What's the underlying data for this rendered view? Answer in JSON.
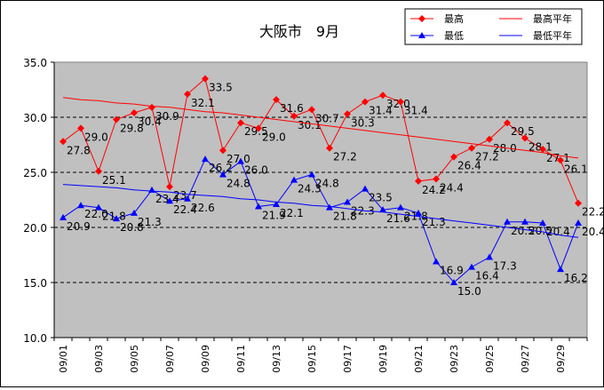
{
  "chart_data": {
    "type": "line",
    "title": "大阪市　9月",
    "xlabel": "",
    "ylabel": "",
    "ylim": [
      10.0,
      35.0
    ],
    "ytick_step": 5.0,
    "grid": "horizontal-dashed",
    "plot_background": "#c0c0c0",
    "legend_position": "top-right",
    "x_ticks": [
      "09/01",
      "09/03",
      "09/05",
      "09/07",
      "09/09",
      "09/11",
      "09/13",
      "09/15",
      "09/17",
      "09/19",
      "09/21",
      "09/23",
      "09/25",
      "09/27",
      "09/29"
    ],
    "days": [
      1,
      2,
      3,
      4,
      5,
      6,
      7,
      8,
      9,
      10,
      11,
      12,
      13,
      14,
      15,
      16,
      17,
      18,
      19,
      20,
      21,
      22,
      23,
      24,
      25,
      26,
      27,
      28,
      29,
      30
    ],
    "series": [
      {
        "name": "最高",
        "color": "#ff0000",
        "marker": "diamond",
        "values": [
          27.8,
          29.0,
          25.1,
          29.8,
          30.4,
          30.9,
          23.7,
          32.1,
          33.5,
          27.0,
          29.5,
          29.0,
          31.6,
          30.1,
          30.7,
          27.2,
          30.3,
          31.4,
          32.0,
          31.4,
          24.2,
          24.4,
          26.4,
          27.2,
          28.0,
          29.5,
          28.1,
          27.1,
          26.1,
          22.2
        ]
      },
      {
        "name": "最低",
        "color": "#0000ff",
        "marker": "triangle",
        "values": [
          20.9,
          22.0,
          21.8,
          20.8,
          21.3,
          23.4,
          22.4,
          22.6,
          26.2,
          24.8,
          26.0,
          21.9,
          22.1,
          24.3,
          24.8,
          21.8,
          22.3,
          23.5,
          21.6,
          21.8,
          21.3,
          16.9,
          15.0,
          16.4,
          17.3,
          20.5,
          20.5,
          20.4,
          16.2,
          20.4
        ]
      },
      {
        "name": "最高平年",
        "color": "#ff0000",
        "marker": "none",
        "values": [
          31.8,
          31.6,
          31.5,
          31.3,
          31.2,
          31.0,
          30.9,
          30.7,
          30.5,
          30.4,
          30.2,
          30.0,
          29.8,
          29.6,
          29.4,
          29.2,
          29.0,
          28.8,
          28.6,
          28.4,
          28.2,
          28.0,
          27.8,
          27.6,
          27.4,
          27.2,
          27.0,
          26.8,
          26.5,
          26.3
        ]
      },
      {
        "name": "最低平年",
        "color": "#0000ff",
        "marker": "none",
        "values": [
          23.9,
          23.8,
          23.7,
          23.6,
          23.4,
          23.3,
          23.2,
          23.0,
          22.9,
          22.8,
          22.6,
          22.5,
          22.3,
          22.2,
          22.0,
          21.9,
          21.7,
          21.5,
          21.4,
          21.2,
          21.0,
          20.8,
          20.6,
          20.4,
          20.2,
          20.0,
          19.8,
          19.6,
          19.3,
          19.1
        ]
      }
    ]
  }
}
